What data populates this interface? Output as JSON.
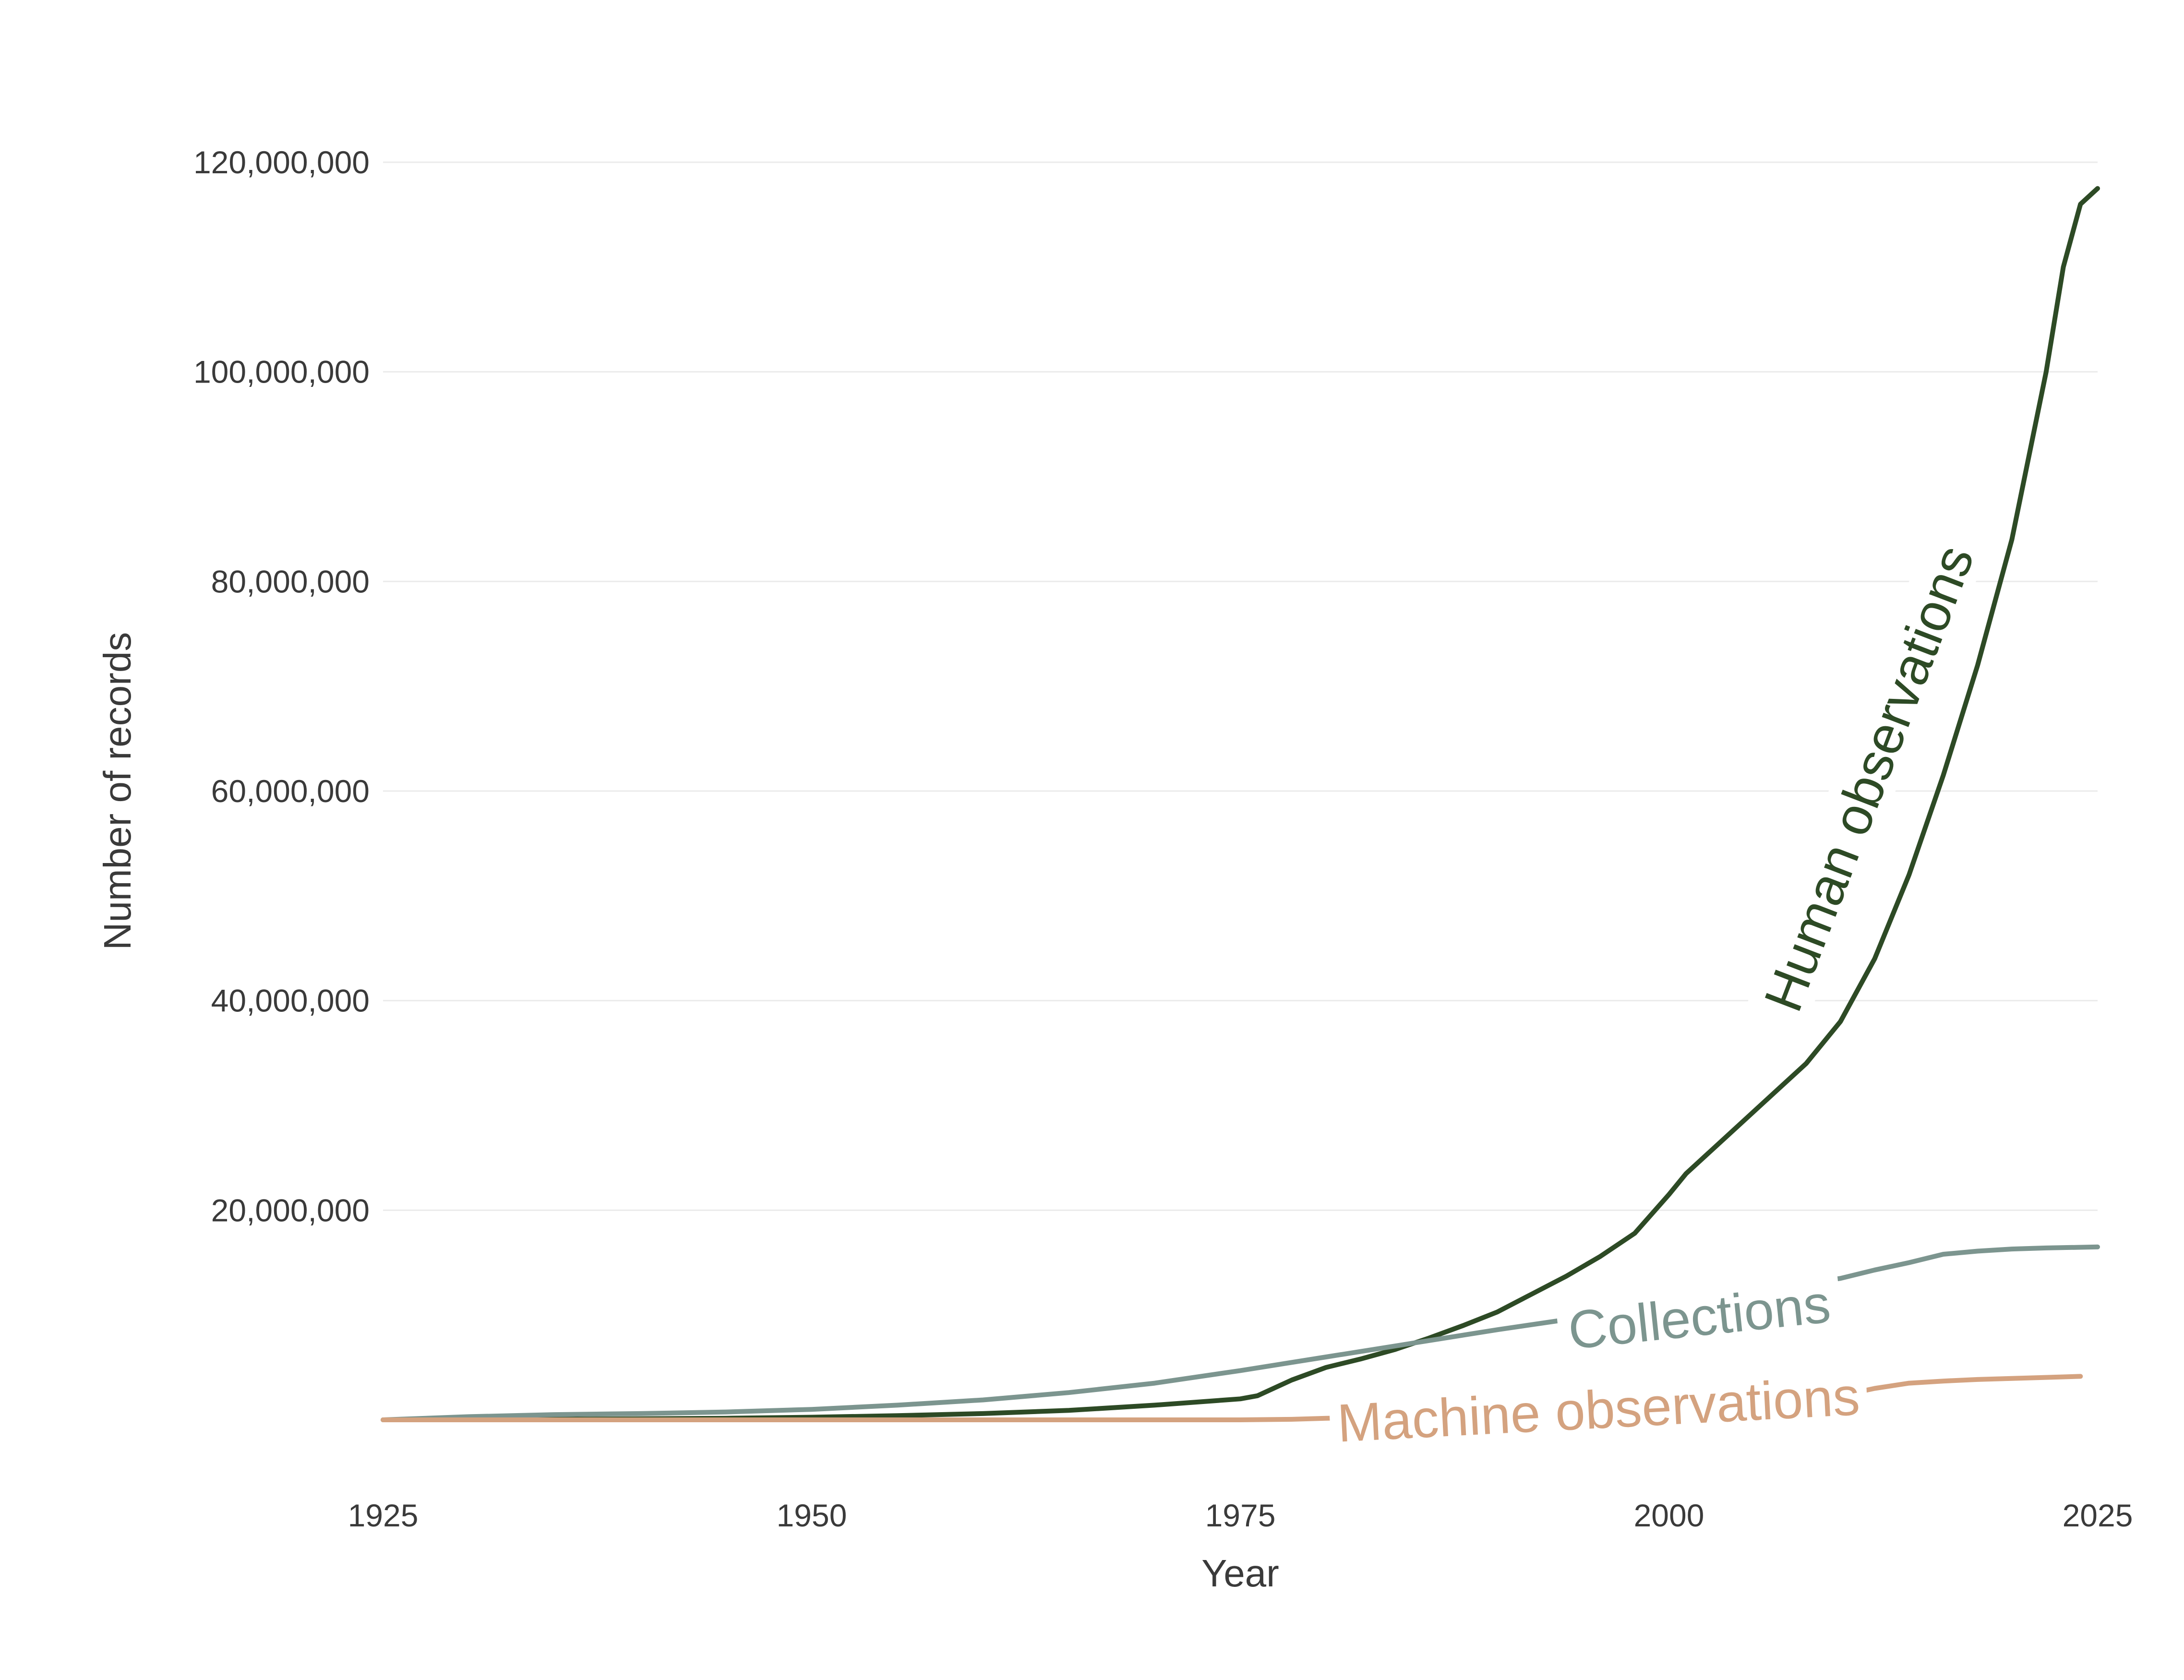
{
  "chart_data": {
    "type": "line",
    "title": "",
    "xlabel": "Year",
    "ylabel": "Number of records",
    "xlim": [
      1925,
      2025
    ],
    "ylim": [
      0,
      125000000
    ],
    "x_ticks": [
      1925,
      1950,
      1975,
      2000,
      2025
    ],
    "x_tick_labels": [
      "1925",
      "1950",
      "1975",
      "2000",
      "2025"
    ],
    "y_ticks": [
      20000000,
      40000000,
      60000000,
      80000000,
      100000000,
      120000000
    ],
    "y_tick_labels": [
      "20,000,000",
      "40,000,000",
      "60,000,000",
      "80,000,000",
      "100,000,000",
      "120,000,000"
    ],
    "grid": true,
    "legend": "none (direct labels on lines)",
    "series": [
      {
        "name": "Human observations",
        "color": "#2d4a25",
        "x": [
          1925,
          1930,
          1935,
          1940,
          1945,
          1950,
          1955,
          1960,
          1965,
          1970,
          1975,
          1976,
          1978,
          1980,
          1982,
          1984,
          1986,
          1988,
          1990,
          1992,
          1994,
          1996,
          1998,
          2000,
          2001,
          2002,
          2004,
          2006,
          2008,
          2010,
          2012,
          2014,
          2016,
          2018,
          2020,
          2022,
          2023,
          2024,
          2025
        ],
        "values": [
          0,
          20000,
          60000,
          100000,
          150000,
          250000,
          400000,
          600000,
          900000,
          1400000,
          2000000,
          2300000,
          3800000,
          5000000,
          5800000,
          6700000,
          7800000,
          9000000,
          10300000,
          12000000,
          13700000,
          15600000,
          17800000,
          21500000,
          23500000,
          25000000,
          28000000,
          31000000,
          34000000,
          38000000,
          44000000,
          52000000,
          61500000,
          72000000,
          84000000,
          100000000,
          110000000,
          116000000,
          117500000
        ]
      },
      {
        "name": "Collections",
        "color": "#7c958f",
        "x": [
          1925,
          1930,
          1935,
          1940,
          1945,
          1950,
          1955,
          1960,
          1965,
          1970,
          1975,
          1980,
          1985,
          1990,
          1995,
          2000,
          2005,
          2010,
          2012,
          2014,
          2016,
          2018,
          2020,
          2022,
          2025
        ],
        "values": [
          0,
          300000,
          500000,
          600000,
          750000,
          1000000,
          1400000,
          1900000,
          2600000,
          3500000,
          4700000,
          6000000,
          7300000,
          8600000,
          9800000,
          11000000,
          12300000,
          13500000,
          14300000,
          15000000,
          15800000,
          16100000,
          16300000,
          16400000,
          16500000
        ]
      },
      {
        "name": "Machine observations",
        "color": "#d4a27f",
        "x": [
          1925,
          1950,
          1975,
          1978,
          1980,
          1985,
          1990,
          1995,
          2000,
          2005,
          2010,
          2012,
          2014,
          2016,
          2018,
          2020,
          2022,
          2024
        ],
        "values": [
          0,
          0,
          0,
          50000,
          150000,
          300000,
          500000,
          750000,
          1000000,
          1300000,
          2300000,
          3000000,
          3500000,
          3700000,
          3850000,
          3950000,
          4050000,
          4150000
        ]
      }
    ],
    "annotations": [
      {
        "text": "Human observations",
        "series": "Human observations"
      },
      {
        "text": "Collections",
        "series": "Collections"
      },
      {
        "text": "Machine observations",
        "series": "Machine observations"
      }
    ]
  }
}
